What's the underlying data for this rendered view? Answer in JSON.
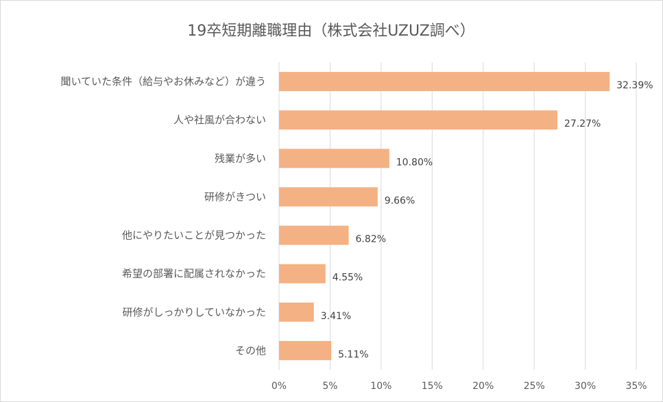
{
  "chart_data": {
    "type": "bar",
    "orientation": "horizontal",
    "title": "19卒短期離職理由（株式会社UZUZ調べ）",
    "xlabel": "",
    "ylabel": "",
    "xlim": [
      0,
      35
    ],
    "grid": true,
    "legend": "none",
    "bar_color": "#F4B183",
    "categories": [
      "聞いていた条件（給与やお休みなど）が違う",
      "人や社風が合わない",
      "残業が多い",
      "研修がきつい",
      "他にやりたいことが見つかった",
      "希望の部署に配属されなかった",
      "研修がしっかりしていなかった",
      "その他"
    ],
    "values": [
      32.39,
      27.27,
      10.8,
      9.66,
      6.82,
      4.55,
      3.41,
      5.11
    ],
    "value_labels": [
      "32.39%",
      "27.27%",
      "10.80%",
      "9.66%",
      "6.82%",
      "4.55%",
      "3.41%",
      "5.11%"
    ],
    "ticks": [
      0,
      5,
      10,
      15,
      20,
      25,
      30,
      35
    ],
    "tick_labels": [
      "0%",
      "5%",
      "10%",
      "15%",
      "20%",
      "25%",
      "30%",
      "35%"
    ]
  }
}
